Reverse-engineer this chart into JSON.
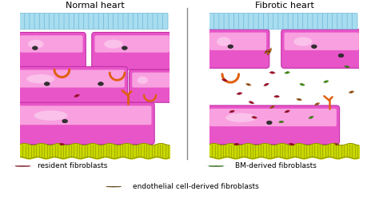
{
  "title_left": "Normal heart",
  "title_right": "Fibrotic heart",
  "bg_color": "#f0ddb8",
  "cm_color": "#e855c8",
  "cm_edge": "#c030a8",
  "cm_light": "#f8a0e0",
  "cm_white": "#ffffff",
  "nuc_color": "#303030",
  "endo_fill": "#a8ddf0",
  "endo_edge": "#70b8d8",
  "res_color": "#e0103a",
  "orange_color": "#e06010",
  "green_color": "#60c010",
  "yellow_fill": "#c8d800",
  "yellow_edge": "#909000",
  "separator_color": "#888888",
  "legend_resident": "resident fibroblasts",
  "legend_endothelial": "endothelial cell-derived fibroblasts",
  "legend_bm": "BM-derived fibroblasts",
  "title_fontsize": 8,
  "legend_fontsize": 6.5,
  "fig_w": 4.74,
  "fig_h": 2.49,
  "dpi": 100
}
